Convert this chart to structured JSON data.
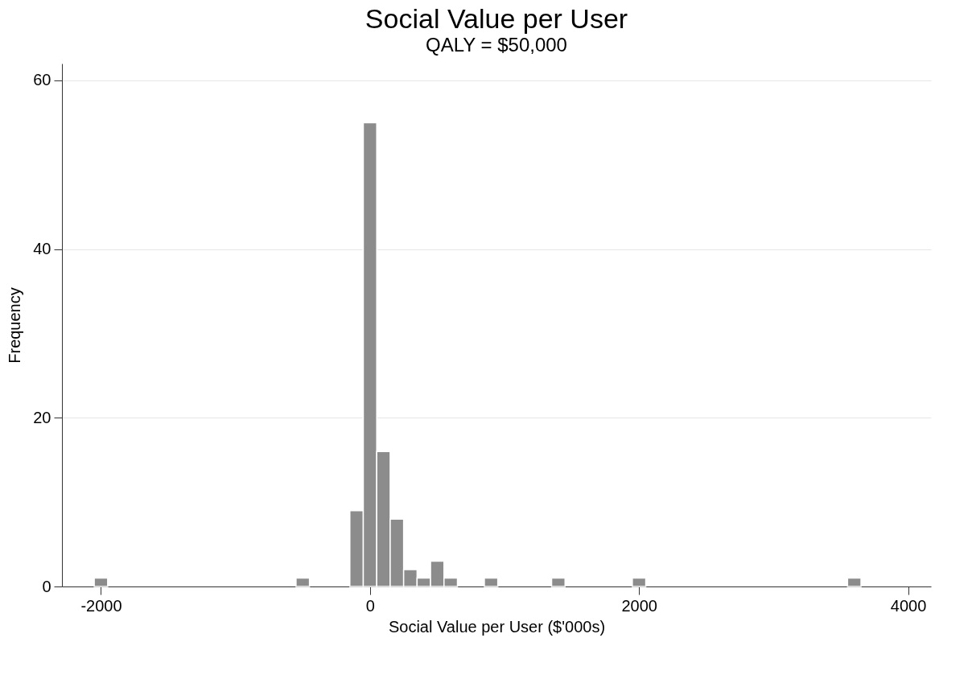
{
  "chart_data": {
    "type": "histogram",
    "title": "Social Value per User",
    "subtitle": "QALY = $50,000",
    "xlabel": "Social Value per User ($'000s)",
    "ylabel": "Frequency",
    "bins": [
      -2050,
      -1950,
      -1850,
      -1750,
      -1650,
      -1550,
      -1450,
      -1350,
      -1250,
      -1150,
      -1050,
      -950,
      -850,
      -750,
      -650,
      -550,
      -450,
      -350,
      -250,
      -150,
      -50,
      50,
      150,
      250,
      350,
      450,
      550,
      650,
      750,
      850,
      950,
      1050,
      1150,
      1250,
      1350,
      1450,
      1550,
      1650,
      1750,
      1850,
      1950,
      2050,
      2150,
      2250,
      2350,
      2450,
      2550,
      2650,
      2750,
      2850,
      2950,
      3050,
      3150,
      3250,
      3350,
      3450,
      3550,
      3650
    ],
    "values": [
      1,
      0,
      0,
      0,
      0,
      0,
      0,
      0,
      0,
      0,
      0,
      0,
      0,
      0,
      0,
      1,
      0,
      0,
      0,
      9,
      55,
      16,
      8,
      2,
      1,
      3,
      1,
      0,
      0,
      1,
      0,
      0,
      0,
      0,
      1,
      0,
      0,
      0,
      0,
      0,
      1,
      0,
      0,
      0,
      0,
      0,
      0,
      0,
      0,
      0,
      0,
      0,
      0,
      0,
      0,
      0,
      1
    ],
    "color": "#8c8c8c",
    "xlim": [
      -2290,
      4170
    ],
    "ylim": [
      0,
      62
    ],
    "xticks": [
      -2000,
      0,
      2000,
      4000
    ],
    "yticks": [
      0,
      20,
      40,
      60
    ],
    "grid": "y"
  }
}
